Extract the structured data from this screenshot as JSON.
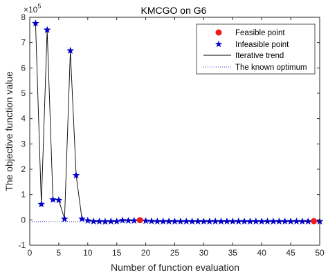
{
  "chart_data": {
    "type": "scatter",
    "title": "KMCGO on G6",
    "xlabel": "Number of function evaluation",
    "ylabel": "The objective function value",
    "y_exponent_label": "×10^5",
    "y_exponent_base": "×10",
    "y_exponent_power": "5",
    "xlim": [
      0,
      50
    ],
    "ylim": [
      -1,
      8
    ],
    "xticks": [
      "0",
      "5",
      "10",
      "15",
      "20",
      "25",
      "30",
      "35",
      "40",
      "45",
      "50"
    ],
    "yticks": [
      "-1",
      "0",
      "1",
      "2",
      "3",
      "4",
      "5",
      "6",
      "7",
      "8"
    ],
    "grid": false,
    "legend_position": "top-right",
    "series": [
      {
        "name": "Infeasible point",
        "marker": "star",
        "color": "#0000cc",
        "x": [
          1,
          2,
          3,
          4,
          5,
          6,
          7,
          8,
          9,
          10,
          11,
          12,
          13,
          14,
          15,
          16,
          17,
          18,
          20,
          21,
          22,
          23,
          24,
          25,
          26,
          27,
          28,
          29,
          30,
          31,
          32,
          33,
          34,
          35,
          36,
          37,
          38,
          39,
          40,
          41,
          42,
          43,
          44,
          45,
          46,
          47,
          48,
          50
        ],
        "y": [
          7.76,
          0.62,
          7.5,
          0.8,
          0.78,
          0.04,
          6.68,
          1.76,
          0.04,
          -0.03,
          -0.06,
          -0.06,
          -0.07,
          -0.06,
          -0.06,
          -0.02,
          -0.03,
          -0.03,
          -0.04,
          -0.05,
          -0.06,
          -0.06,
          -0.06,
          -0.06,
          -0.06,
          -0.06,
          -0.06,
          -0.06,
          -0.06,
          -0.06,
          -0.06,
          -0.06,
          -0.06,
          -0.06,
          -0.06,
          -0.06,
          -0.06,
          -0.06,
          -0.06,
          -0.06,
          -0.06,
          -0.06,
          -0.06,
          -0.06,
          -0.06,
          -0.06,
          -0.06,
          -0.06
        ]
      },
      {
        "name": "Feasible point",
        "marker": "circle",
        "color": "#ee1c1c",
        "x": [
          19,
          49
        ],
        "y": [
          -0.01,
          -0.05
        ]
      },
      {
        "name": "Iterative trend",
        "marker": "line",
        "color": "#000000",
        "x": [
          1,
          2,
          3,
          4,
          5,
          6,
          7,
          8,
          9,
          10,
          11,
          12,
          13,
          14,
          15,
          16,
          17,
          18,
          19,
          20,
          21,
          22,
          23,
          24,
          25,
          26,
          27,
          28,
          29,
          30,
          31,
          32,
          33,
          34,
          35,
          36,
          37,
          38,
          39,
          40,
          41,
          42,
          43,
          44,
          45,
          46,
          47,
          48,
          49,
          50
        ],
        "y": [
          7.76,
          0.62,
          7.5,
          0.8,
          0.78,
          0.04,
          6.68,
          1.76,
          0.04,
          -0.03,
          -0.06,
          -0.06,
          -0.07,
          -0.06,
          -0.06,
          -0.02,
          -0.03,
          -0.03,
          -0.01,
          -0.04,
          -0.05,
          -0.06,
          -0.06,
          -0.06,
          -0.06,
          -0.06,
          -0.06,
          -0.06,
          -0.06,
          -0.06,
          -0.06,
          -0.06,
          -0.06,
          -0.06,
          -0.06,
          -0.06,
          -0.06,
          -0.06,
          -0.06,
          -0.06,
          -0.06,
          -0.06,
          -0.06,
          -0.06,
          -0.06,
          -0.06,
          -0.06,
          -0.06,
          -0.05,
          -0.06
        ]
      },
      {
        "name": "The known optimum",
        "marker": "dotted-line",
        "color": "#3333cc",
        "x": [
          0,
          50
        ],
        "y": [
          -0.07,
          -0.07
        ]
      }
    ]
  }
}
